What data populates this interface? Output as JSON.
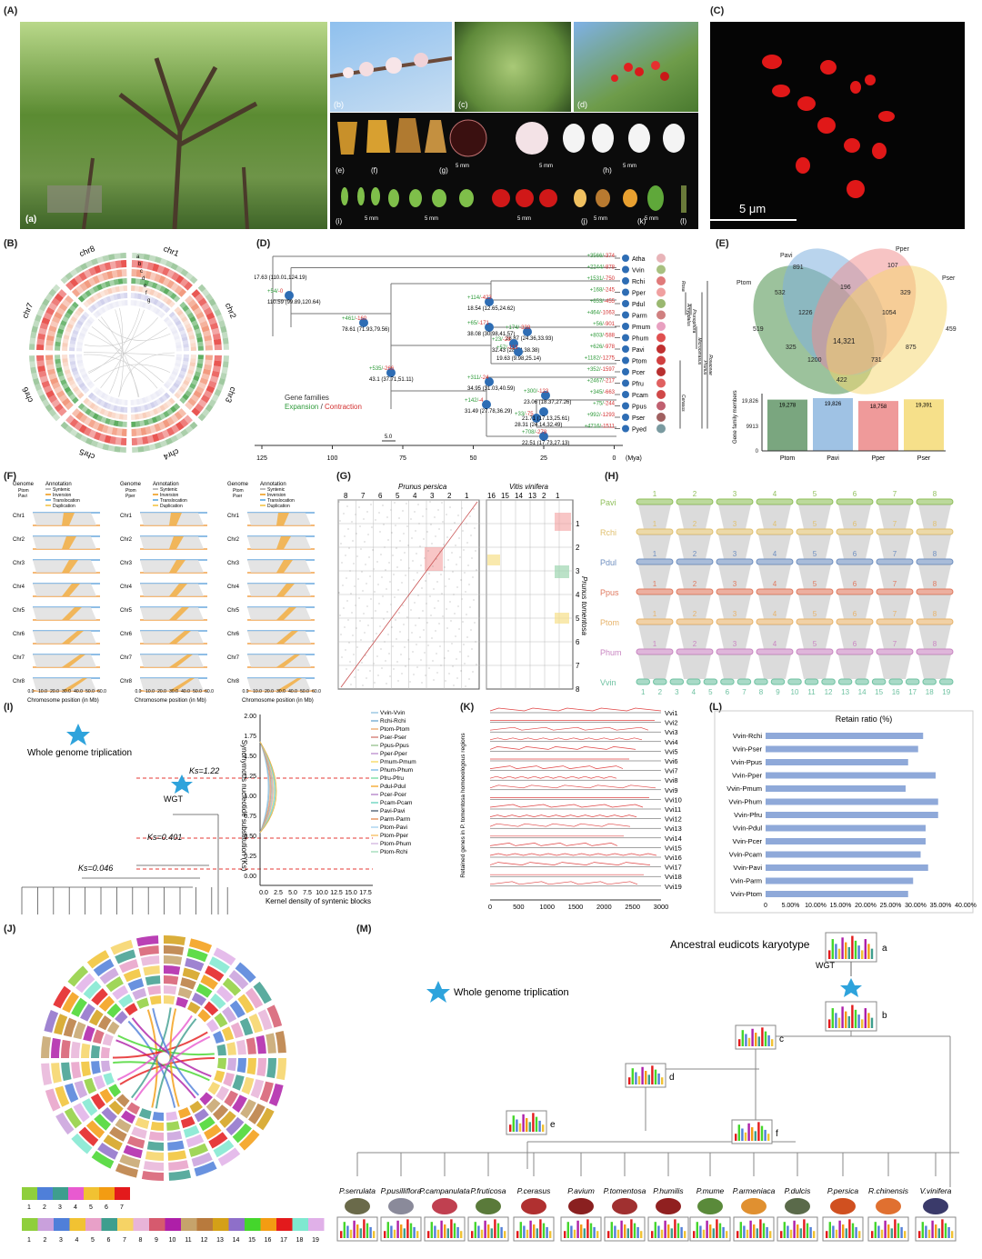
{
  "panels": {
    "A": "(A)",
    "B": "(B)",
    "C": "(C)",
    "D": "(D)",
    "E": "(E)",
    "F": "(F)",
    "G": "(G)",
    "H": "(H)",
    "I": "(I)",
    "J": "(J)",
    "K": "(K)",
    "L": "(L)",
    "M": "(M)"
  },
  "A": {
    "sub": [
      "(a)",
      "(b)",
      "(c)",
      "(d)",
      "(e)",
      "(f)",
      "(g)",
      "(h)",
      "(i)",
      "(j)",
      "(k)",
      "(l)"
    ],
    "scale": "5 mm"
  },
  "C": {
    "scale": "5 μm"
  },
  "B": {
    "chromosomes": [
      "chr1",
      "chr2",
      "chr3",
      "chr4",
      "chr5",
      "chr6",
      "chr7",
      "chr8"
    ],
    "tracks": [
      "a",
      "b",
      "c",
      "d",
      "e",
      "f",
      "g"
    ]
  },
  "D": {
    "legend_title": "Gene families",
    "legend_expansion": "Expansion",
    "legend_sep": " / ",
    "legend_contraction": "Contraction",
    "axis_ticks": [
      "125",
      "100",
      "75",
      "50",
      "25",
      "0"
    ],
    "axis_unit": "(Mya)",
    "scale_bar": "5.0",
    "species": [
      "Atha",
      "Vvin",
      "Rchi",
      "Pper",
      "Pdul",
      "Parm",
      "Pmum",
      "Phum",
      "Pavi",
      "Ptom",
      "Pcer",
      "Pfru",
      "Pcam",
      "Ppus",
      "Pser",
      "Pyed"
    ],
    "gains": [
      "+3566/",
      "+2244/",
      "+1531/",
      "+168/",
      "+653/",
      "+464/",
      "+56/",
      "+803/",
      "+626/",
      "+1182/",
      "+352/",
      "+2467/",
      "+345/",
      "+75/",
      "+992/",
      "+4716/"
    ],
    "losses": [
      "-374",
      "-878",
      "-750",
      "-245",
      "-455",
      "-1063",
      "-901",
      "-588",
      "-978",
      "-1275",
      "-1597",
      "-217",
      "-663",
      "-244",
      "-1293",
      "-1511"
    ],
    "nodes": [
      {
        "age": "117.63 (110.01,124.19)"
      },
      {
        "age": "110.59 (99.89,120.64)",
        "gain": "+54/",
        "loss": "-0"
      },
      {
        "age": "78.61 (71.93,79.56)",
        "gain": "+461/",
        "loss": "-160"
      },
      {
        "age": "43.1 (37.71,51.11)",
        "gain": "+535/",
        "loss": "-266"
      },
      {
        "age": "38.08 (30.98,41.57)",
        "gain": "+65/",
        "loss": "-171"
      },
      {
        "age": "18.54 (12.65,24.62)",
        "gain": "+114/",
        "loss": "-423"
      },
      {
        "age": "28.87 (24.36,33.93)",
        "gain": "+174/",
        "loss": "-338"
      },
      {
        "age": "32.43 (28.14,38.38)",
        "gain": "+23/",
        "loss": "-28"
      },
      {
        "age": "19.63 (9.98,25.14)",
        "gain": "+57/",
        "loss": "-113"
      },
      {
        "age": "34.95 (31.03,40.59)",
        "gain": "+311/",
        "loss": "-24"
      },
      {
        "age": "31.49 (27.78,36.29)",
        "gain": "+142/",
        "loss": "-4"
      },
      {
        "age": "23.06 (18.37,27.26)",
        "gain": "+300/",
        "loss": "-123"
      },
      {
        "age": "28.31 (24.14,32.49)",
        "gain": "+33/",
        "loss": "-75"
      },
      {
        "age": "21.71 (17.13,25.61)",
        "gain": "",
        "loss": ""
      },
      {
        "age": "22.51 (17.73,27.13)",
        "gain": "+708/",
        "loss": "-278"
      }
    ],
    "taxa": [
      "Rosa",
      "Amygdalus",
      "Prunophora",
      "Microcerasus",
      "Cerasus",
      "Prunus",
      "Rosaceae"
    ]
  },
  "E": {
    "sets": [
      "Ptom",
      "Pavi",
      "Pper",
      "Pser"
    ],
    "counts": {
      "ptom_only": "519",
      "pavi_only": "891",
      "pper_only": "107",
      "pser_only": "459",
      "ptom_pavi": "532",
      "pavi_pper": "196",
      "pper_pser": "329",
      "ptom_pper": "1226",
      "ptom_pavi_pper": "",
      "center": "14,321",
      "pavi_pper_pser": "1054",
      "ptom_pser": "325",
      "ptom_pavi_pser": "1200",
      "pavi_pser": "875",
      "ptom_pper_pser": "731",
      "pser_pavi": "422"
    },
    "bar_ylabel": "Gene family members",
    "yticks": [
      "19,826",
      "9913",
      "0"
    ],
    "bars": [
      {
        "name": "Ptom",
        "value": 19278,
        "label": "19,278",
        "color": "#7aa67f"
      },
      {
        "name": "Pavi",
        "value": 19826,
        "label": "19,826",
        "color": "#9fc2e4"
      },
      {
        "name": "Pper",
        "value": 18758,
        "label": "18,758",
        "color": "#ef9a9a"
      },
      {
        "name": "Pser",
        "value": 19391,
        "label": "19,391",
        "color": "#f6e08a"
      }
    ]
  },
  "F": {
    "legend": [
      {
        "genome": "Genome",
        "g1": "Ptom",
        "g2": "Pavi"
      },
      {
        "genome": "Genome",
        "g1": "Ptom",
        "g2": "Pper"
      },
      {
        "genome": "Genome",
        "g1": "Ptom",
        "g2": "Pser"
      }
    ],
    "annotation_title": "Annotation",
    "annotations": [
      "Syntenic",
      "Inversion",
      "Translocation",
      "Duplication"
    ],
    "chrs": [
      "Chr1",
      "Chr2",
      "Chr3",
      "Chr4",
      "Chr5",
      "Chr6",
      "Chr7",
      "Chr8"
    ],
    "ticks": [
      "0.0",
      "10.0",
      "20.0",
      "30.0",
      "40.0",
      "50.0",
      "60.0"
    ],
    "xlabel": "Chromosome position (in Mb)"
  },
  "G": {
    "title1": "Prunus persica",
    "title2": "Vitis vinifera",
    "x1": [
      "8",
      "7",
      "6",
      "5",
      "4",
      "3",
      "2",
      "1"
    ],
    "x2": [
      "16",
      "15",
      "14",
      "13",
      "2",
      "1"
    ],
    "y": [
      "1",
      "2",
      "3",
      "4",
      "5",
      "6",
      "7",
      "8"
    ],
    "ylabel": "Prunus tomentosa"
  },
  "H": {
    "rows": [
      {
        "name": "Pavi",
        "color": "#8fbf5a"
      },
      {
        "name": "Rchi",
        "color": "#e0c070"
      },
      {
        "name": "Pdul",
        "color": "#6f8fc0"
      },
      {
        "name": "Ppus",
        "color": "#e07a5f"
      },
      {
        "name": "Ptom",
        "color": "#e7b36a"
      },
      {
        "name": "Phum",
        "color": "#c986c2"
      },
      {
        "name": "Vvin",
        "color": "#6fc2a2"
      }
    ],
    "chr8": [
      "1",
      "2",
      "3",
      "4",
      "5",
      "6",
      "7",
      "8"
    ],
    "vvin": [
      "1",
      "2",
      "3",
      "4",
      "5",
      "6",
      "7",
      "8",
      "9",
      "10",
      "11",
      "12",
      "13",
      "14",
      "15",
      "16",
      "17",
      "18",
      "19"
    ]
  },
  "I": {
    "wgt_legend": "Whole genome triplication",
    "wgt": "WGT",
    "ks1": "Ks=1.22",
    "ks2": "Ks=0.401",
    "ks3": "Ks=0.046",
    "species": [
      "Pser",
      "Ppus",
      "Pcam",
      "Pfru",
      "Pcer",
      "Pavi",
      "Ptom",
      "Phum",
      "Pmum",
      "Parm",
      "Pdul",
      "Pper",
      "Rchi",
      "Vvin"
    ],
    "yticks": [
      "2.00",
      "1.75",
      "1.50",
      "1.25",
      "1.00",
      "0.75",
      "0.50",
      "0.25",
      "0.00"
    ],
    "xticks": [
      "0.0",
      "2.5",
      "5.0",
      "7.5",
      "10.0",
      "12.5",
      "15.0",
      "17.5"
    ],
    "ylabel": "Synonymous nucleotide substitution (Ks)",
    "xlabel": "Kernel density of syntenic blocks",
    "legend": [
      "Vvin-Vvin",
      "Rchi-Rchi",
      "Ptom-Ptom",
      "Pser-Pser",
      "Ppus-Ppus",
      "Pper-Pper",
      "Pmum-Pmum",
      "Phum-Phum",
      "Pfru-Pfru",
      "Pdul-Pdul",
      "Pcer-Pcer",
      "Pcam-Pcam",
      "Pavi-Pavi",
      "Parm-Parm",
      "Ptom-Pavi",
      "Ptom-Pper",
      "Ptom-Phum",
      "Ptom-Rchi"
    ],
    "legend_colors": [
      "#9ec9e2",
      "#7fb3d5",
      "#f0b27a",
      "#d98880",
      "#a3c99a",
      "#c39bd3",
      "#f7dc6f",
      "#85c1e9",
      "#82e0aa",
      "#f5b041",
      "#bb8fce",
      "#76d7c4",
      "#5d6d7e",
      "#e59866",
      "#aed6f1",
      "#f8c471",
      "#d7bde2",
      "#a9dfbf"
    ]
  },
  "K": {
    "rows": [
      "Vvi1",
      "Vvi2",
      "Vvi3",
      "Vvi4",
      "Vvi5",
      "Vvi6",
      "Vvi7",
      "Vvi8",
      "Vvi9",
      "Vvi10",
      "Vvi11",
      "Vvi12",
      "Vvi13",
      "Vvi14",
      "Vvi15",
      "Vvi16",
      "Vvi17",
      "Vvi18",
      "Vvi19"
    ],
    "xticks": [
      "0",
      "500",
      "1000",
      "1500",
      "2000",
      "2500",
      "3000"
    ],
    "ylabel": "Retained genes in P. tomentosa homoeologous regions"
  },
  "L": {
    "title": "Retain ratio (%)",
    "categories": [
      "Vvin-Rchi",
      "Vvin-Pser",
      "Vvin-Ppus",
      "Vvin-Pper",
      "Vvin-Pmum",
      "Vvin-Phum",
      "Vvin-Pfru",
      "Vvin-Pdul",
      "Vvin-Pcer",
      "Vvin-Pcam",
      "Vvin-Pavi",
      "Vvin-Parm",
      "Vvin-Ptom"
    ],
    "values": [
      31.5,
      30.5,
      28.5,
      34.0,
      28.0,
      34.5,
      34.5,
      32.0,
      32.0,
      31.0,
      32.5,
      29.5,
      28.5
    ],
    "xticks": [
      "0",
      "5.00%",
      "10.00%",
      "15.00%",
      "20.00%",
      "25.00%",
      "30.00%",
      "35.00%",
      "40.00%"
    ],
    "color": "#8fa9d9"
  },
  "J": {
    "legend_top": [
      "1",
      "2",
      "3",
      "4",
      "5",
      "6",
      "7"
    ],
    "legend_top_colors": [
      "#8fcf3c",
      "#4f7fd9",
      "#3e9e8e",
      "#e85ad0",
      "#f1c232",
      "#f39c12",
      "#e31a1c"
    ],
    "legend_bottom": [
      "1",
      "2",
      "3",
      "4",
      "5",
      "6",
      "7",
      "8",
      "9",
      "10",
      "11",
      "12",
      "13",
      "14",
      "15",
      "16",
      "17",
      "18",
      "19"
    ],
    "legend_bottom_colors": [
      "#8fcf3c",
      "#c9a0dc",
      "#4f7fd9",
      "#f1c232",
      "#e8a0c8",
      "#3e9e8e",
      "#f6d365",
      "#e8b4d8",
      "#d65a6e",
      "#ae1fa8",
      "#c6a36b",
      "#b87a3d",
      "#d4a017",
      "#8e6fc9",
      "#44d62c",
      "#f39c12",
      "#e31a1c",
      "#7fe8d0",
      "#e0b0e8"
    ]
  },
  "M": {
    "title": "Ancestral eudicots karyotype",
    "wgt": "WGT",
    "wgt_legend": "Whole genome triplication",
    "nodes": [
      "a",
      "b",
      "c",
      "d",
      "e",
      "f"
    ],
    "species": [
      "P.serrulata",
      "P.pusilliflora",
      "P.campanulata",
      "P.fruticosa",
      "P.cerasus",
      "P.avium",
      "P.tomentosa",
      "P.humilis",
      "P.mume",
      "P.armeniaca",
      "P.dulcis",
      "P.persica",
      "R.chinensis",
      "V.vinifera"
    ]
  }
}
